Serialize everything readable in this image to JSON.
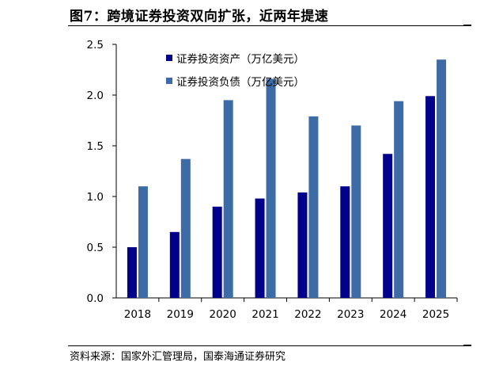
{
  "figure": {
    "title": "图7：跨境证券投资双向扩张，近两年提速",
    "source": "资料来源：国家外汇管理局，国泰海通证券研究"
  },
  "chart_data": {
    "type": "bar",
    "categories": [
      "2018",
      "2019",
      "2020",
      "2021",
      "2022",
      "2023",
      "2024",
      "2025"
    ],
    "series": [
      {
        "name": "证券投资资产（万亿美元）",
        "color": "#00008B",
        "values": [
          0.5,
          0.65,
          0.9,
          0.98,
          1.04,
          1.1,
          1.42,
          1.99
        ]
      },
      {
        "name": "证券投资负债（万亿美元）",
        "color": "#3D6BA6",
        "values": [
          1.1,
          1.37,
          1.95,
          2.16,
          1.79,
          1.7,
          1.94,
          2.35
        ]
      }
    ],
    "ylim": [
      0,
      2.5
    ],
    "yticks": [
      "0.0",
      "0.5",
      "1.0",
      "1.5",
      "2.0",
      "2.5"
    ],
    "grid": false,
    "legend_position": "top-left"
  }
}
